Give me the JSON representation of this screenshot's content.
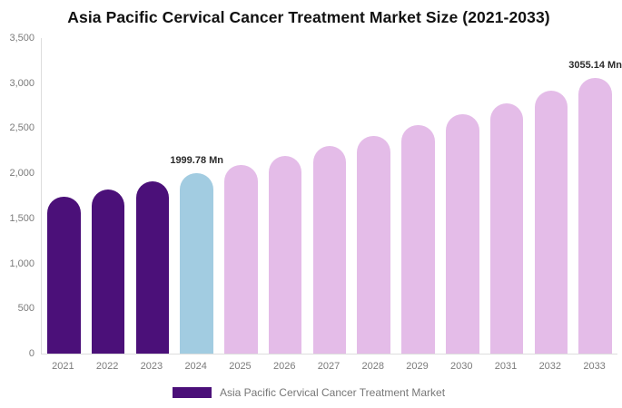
{
  "title": "Asia Pacific Cervical Cancer Treatment Market Size (2021-2033)",
  "legend": {
    "label": "Asia Pacific Cervical Cancer Treatment Market",
    "swatch_color": "#4B1079"
  },
  "colors": {
    "bar_dark_purple": "#4B1079",
    "bar_light_blue": "#A2CCE1",
    "bar_light_pink": "#E4BCE8",
    "axis_line": "#dddddd",
    "axis_label_gray": "#7b7b7b",
    "title_black": "#111111"
  },
  "chart_data": {
    "type": "bar",
    "title": "Asia Pacific Cervical Cancer Treatment Market Size (2021-2033)",
    "xlabel": "",
    "ylabel": "",
    "ylim": [
      0,
      3500
    ],
    "grid": false,
    "legend_position": "bottom",
    "categories": [
      "2021",
      "2022",
      "2023",
      "2024",
      "2025",
      "2026",
      "2027",
      "2028",
      "2029",
      "2030",
      "2031",
      "2032",
      "2033"
    ],
    "values": [
      1736,
      1820,
      1908,
      1999.78,
      2096,
      2197,
      2303,
      2414,
      2530,
      2652,
      2780,
      2914,
      3055.14
    ],
    "bar_colors": [
      "#4B1079",
      "#4B1079",
      "#4B1079",
      "#A2CCE1",
      "#E4BCE8",
      "#E4BCE8",
      "#E4BCE8",
      "#E4BCE8",
      "#E4BCE8",
      "#E4BCE8",
      "#E4BCE8",
      "#E4BCE8",
      "#E4BCE8"
    ],
    "y_tick_labels": [
      "3,500",
      "3,000",
      "2,500",
      "2,000",
      "1,500",
      "1,000",
      "500",
      "0"
    ],
    "y_tick_values": [
      3500,
      3000,
      2500,
      2000,
      1500,
      1000,
      500,
      0
    ],
    "annotations": [
      {
        "category": "2024",
        "text": "1999.78 Mn"
      },
      {
        "category": "2033",
        "text": "3055.14 Mn"
      }
    ]
  }
}
